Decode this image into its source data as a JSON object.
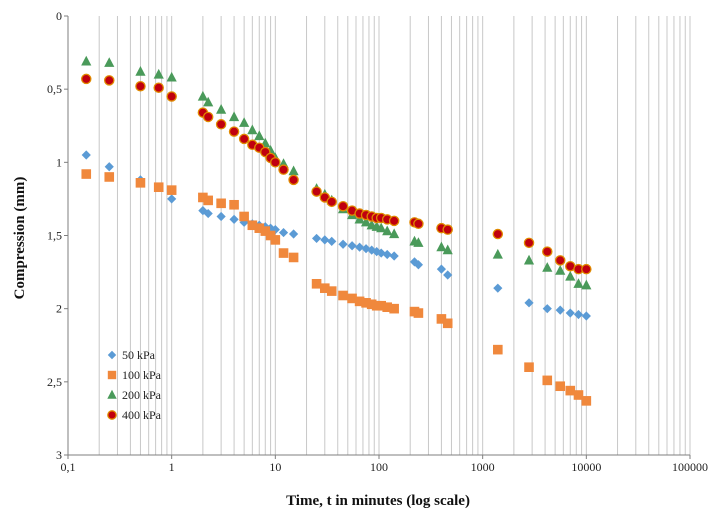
{
  "chart_data": {
    "type": "scatter",
    "title": "",
    "xlabel": "Time, t in minutes (log scale)",
    "ylabel": "Compression (mm)",
    "x_scale": "log",
    "xlim": [
      0.1,
      100000
    ],
    "ylim": [
      0,
      3
    ],
    "y_inverted": true,
    "x_tick_labels": [
      "0,1",
      "1",
      "10",
      "100",
      "1000",
      "10000",
      "100000"
    ],
    "y_tick_labels": [
      "0",
      "0,5",
      "1",
      "1,5",
      "2",
      "2,5",
      "3"
    ],
    "grid": "vertical minor and major gridlines",
    "legend": "bottom-left inside plot",
    "series": [
      {
        "name": "50 kPa",
        "marker": "diamond",
        "color": "#5b9bd5",
        "x": [
          0.15,
          0.25,
          0.5,
          0.75,
          1,
          2,
          2.25,
          3,
          4,
          5,
          6,
          7,
          8,
          9,
          10,
          12,
          15,
          25,
          30,
          35,
          45,
          55,
          65,
          75,
          85,
          95,
          105,
          120,
          140,
          220,
          240,
          400,
          460,
          1400,
          2800,
          4200,
          5600,
          7000,
          8400,
          10000
        ],
        "y": [
          0.95,
          1.03,
          1.12,
          1.17,
          1.25,
          1.33,
          1.35,
          1.37,
          1.39,
          1.41,
          1.42,
          1.43,
          1.44,
          1.45,
          1.46,
          1.48,
          1.49,
          1.52,
          1.53,
          1.54,
          1.56,
          1.57,
          1.58,
          1.59,
          1.6,
          1.61,
          1.62,
          1.63,
          1.64,
          1.68,
          1.7,
          1.73,
          1.77,
          1.86,
          1.96,
          2.0,
          2.01,
          2.03,
          2.04,
          2.05
        ]
      },
      {
        "name": "100 kPa",
        "marker": "square",
        "color": "#f0883c",
        "x": [
          0.15,
          0.25,
          0.5,
          0.75,
          1,
          2,
          2.25,
          3,
          4,
          5,
          6,
          7,
          8,
          9,
          10,
          12,
          15,
          25,
          30,
          35,
          45,
          55,
          65,
          75,
          85,
          95,
          105,
          120,
          140,
          220,
          240,
          400,
          460,
          1400,
          2800,
          4200,
          5600,
          7000,
          8400,
          10000
        ],
        "y": [
          1.08,
          1.1,
          1.14,
          1.17,
          1.19,
          1.24,
          1.26,
          1.28,
          1.29,
          1.37,
          1.43,
          1.45,
          1.47,
          1.5,
          1.53,
          1.62,
          1.65,
          1.83,
          1.86,
          1.88,
          1.91,
          1.93,
          1.95,
          1.96,
          1.97,
          1.98,
          1.98,
          1.99,
          2.0,
          2.02,
          2.03,
          2.07,
          2.1,
          2.28,
          2.4,
          2.49,
          2.53,
          2.56,
          2.59,
          2.63
        ]
      },
      {
        "name": "200 kPa",
        "marker": "triangle",
        "color": "#4a9a5a",
        "x": [
          0.15,
          0.25,
          0.5,
          0.75,
          1,
          2,
          2.25,
          3,
          4,
          5,
          6,
          7,
          8,
          9,
          10,
          12,
          15,
          25,
          30,
          35,
          45,
          55,
          65,
          75,
          85,
          95,
          105,
          120,
          140,
          220,
          240,
          400,
          460,
          1400,
          2800,
          4200,
          5600,
          7000,
          8400,
          10000
        ],
        "y": [
          0.31,
          0.32,
          0.38,
          0.4,
          0.42,
          0.55,
          0.59,
          0.64,
          0.69,
          0.73,
          0.78,
          0.82,
          0.87,
          0.92,
          0.97,
          1.01,
          1.06,
          1.18,
          1.22,
          1.26,
          1.32,
          1.36,
          1.39,
          1.41,
          1.43,
          1.44,
          1.45,
          1.47,
          1.49,
          1.54,
          1.55,
          1.58,
          1.6,
          1.63,
          1.67,
          1.72,
          1.74,
          1.78,
          1.83,
          1.84
        ]
      },
      {
        "name": "400 kPa",
        "marker": "circle",
        "color": "#c0000f",
        "x": [
          0.15,
          0.25,
          0.5,
          0.75,
          1,
          2,
          2.25,
          3,
          4,
          5,
          6,
          7,
          8,
          9,
          10,
          12,
          15,
          25,
          30,
          35,
          45,
          55,
          65,
          75,
          85,
          95,
          105,
          120,
          140,
          220,
          240,
          400,
          460,
          1400,
          2800,
          4200,
          5600,
          7000,
          8400,
          10000
        ],
        "y": [
          0.43,
          0.44,
          0.48,
          0.49,
          0.55,
          0.66,
          0.69,
          0.74,
          0.79,
          0.84,
          0.88,
          0.9,
          0.93,
          0.97,
          1.0,
          1.05,
          1.12,
          1.2,
          1.24,
          1.27,
          1.3,
          1.33,
          1.35,
          1.36,
          1.37,
          1.38,
          1.38,
          1.39,
          1.4,
          1.41,
          1.42,
          1.45,
          1.46,
          1.49,
          1.55,
          1.61,
          1.67,
          1.71,
          1.73,
          1.73
        ]
      }
    ]
  }
}
